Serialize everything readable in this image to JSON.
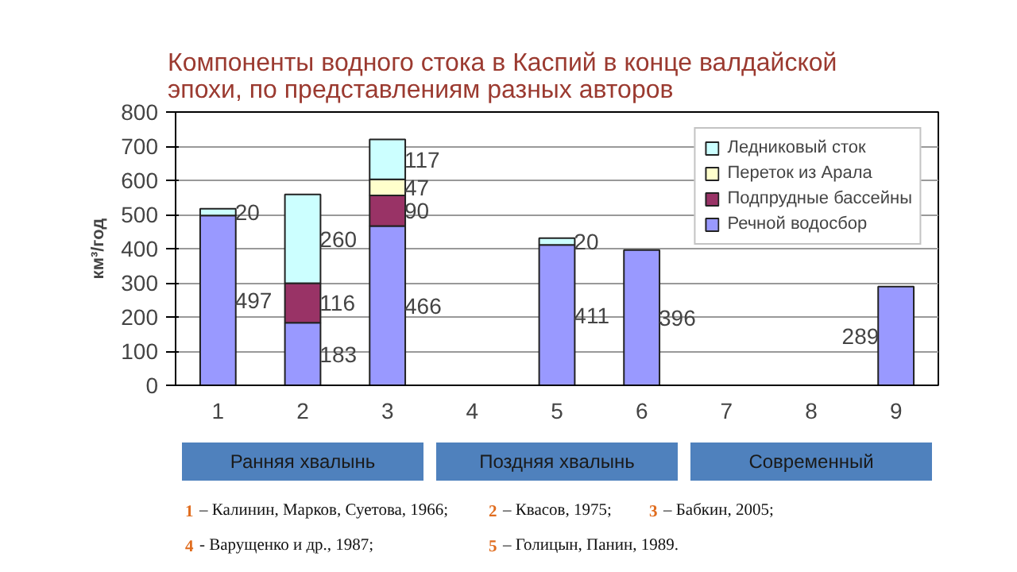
{
  "chart_data": {
    "type": "bar",
    "stacked": true,
    "title": "Компоненты водного стока в Каспий в конце валдайской эпохи, по представлениям разных авторов",
    "categories": [
      "1",
      "2",
      "3",
      "4",
      "5",
      "6",
      "7",
      "8",
      "9"
    ],
    "ylabel": "км³/год",
    "ylim": [
      0,
      800
    ],
    "yticks": [
      0,
      100,
      200,
      300,
      400,
      500,
      600,
      700,
      800
    ],
    "grid": "y",
    "legend": "top right",
    "series": [
      {
        "name": "Речной водосбор",
        "color": "#9999ff",
        "values": [
          497,
          183,
          466,
          null,
          411,
          396,
          null,
          null,
          289
        ],
        "value_labels": [
          "497",
          "183",
          "466",
          null,
          "411",
          "396",
          null,
          null,
          "289"
        ]
      },
      {
        "name": "Подпрудные бассейны",
        "color": "#993366",
        "values": [
          null,
          116,
          90,
          null,
          null,
          null,
          null,
          null,
          null
        ],
        "value_labels": [
          null,
          "116",
          "90",
          null,
          null,
          null,
          null,
          null,
          null
        ]
      },
      {
        "name": "Переток из Арала",
        "color": "#ffffcc",
        "values": [
          null,
          null,
          47,
          null,
          null,
          null,
          null,
          null,
          null
        ],
        "value_labels": [
          null,
          null,
          "47",
          null,
          null,
          null,
          null,
          null,
          null
        ]
      },
      {
        "name": "Ледниковый сток",
        "color": "#ccffff",
        "values": [
          20,
          260,
          117,
          null,
          20,
          null,
          null,
          null,
          null
        ],
        "value_labels": [
          "20",
          "260",
          "117",
          null,
          "20",
          null,
          null,
          null,
          null
        ]
      }
    ],
    "annotations": [
      "Ранняя хвалынь",
      "Поздняя хвалынь",
      "Современный",
      "1 – Калинин, Марков, Суетова, 1966;",
      "2 – Квасов, 1975;",
      "3 – Бабкин, 2005;",
      "4 - Варущенко и др., 1987;",
      "5 – Голицын, Панин, 1989."
    ]
  }
}
